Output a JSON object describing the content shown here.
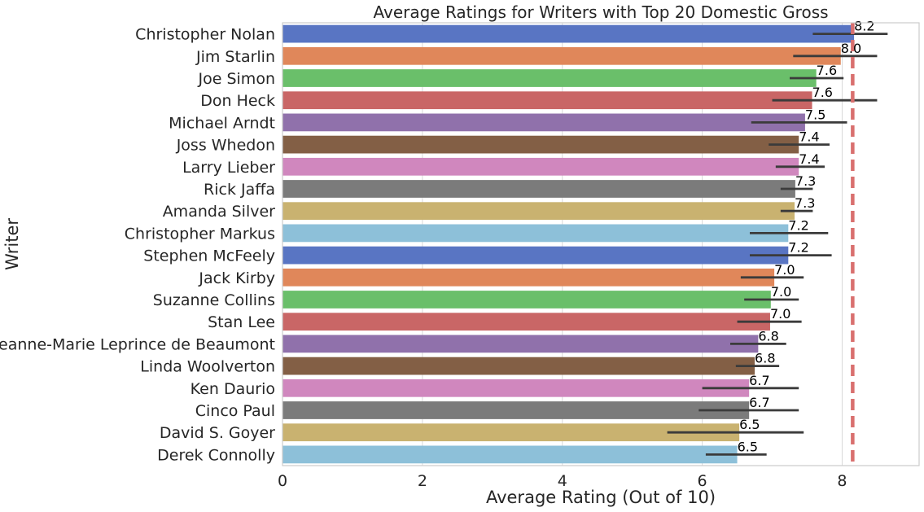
{
  "chart_data": {
    "type": "bar",
    "orientation": "horizontal",
    "title": "Average Ratings for Writers with Top 20 Domestic Gross",
    "xlabel": "Average Rating (Out of 10)",
    "ylabel": "Writer",
    "xlim": [
      0,
      9.1
    ],
    "xticks": [
      "0",
      "2",
      "4",
      "6",
      "8"
    ],
    "grid": true,
    "reference_line": 8.15,
    "categories": [
      "Christopher Nolan",
      "Jim Starlin",
      "Joe Simon",
      "Don Heck",
      "Michael Arndt",
      "Joss Whedon",
      "Larry Lieber",
      "Rick Jaffa",
      "Amanda Silver",
      "Christopher Markus",
      "Stephen McFeely",
      "Jack Kirby",
      "Suzanne Collins",
      "Stan Lee",
      "Jeanne-Marie Leprince de Beaumont",
      "Linda Woolverton",
      "Ken Daurio",
      "Cinco Paul",
      "David S. Goyer",
      "Derek Connolly"
    ],
    "values": [
      8.17,
      7.98,
      7.63,
      7.57,
      7.47,
      7.38,
      7.38,
      7.33,
      7.32,
      7.23,
      7.23,
      7.03,
      6.98,
      6.97,
      6.8,
      6.75,
      6.67,
      6.67,
      6.53,
      6.5
    ],
    "value_labels": [
      "8.2",
      "8.0",
      "7.6",
      "7.6",
      "7.5",
      "7.4",
      "7.4",
      "7.3",
      "7.3",
      "7.2",
      "7.2",
      "7.0",
      "7.0",
      "7.0",
      "6.8",
      "6.8",
      "6.7",
      "6.7",
      "6.5",
      "6.5"
    ],
    "error_low": [
      7.58,
      7.3,
      7.25,
      7.0,
      6.7,
      6.95,
      7.05,
      7.12,
      7.12,
      6.68,
      6.68,
      6.55,
      6.6,
      6.5,
      6.4,
      6.48,
      6.0,
      5.95,
      5.5,
      6.05
    ],
    "error_high": [
      8.65,
      8.5,
      8.02,
      8.5,
      8.07,
      7.82,
      7.75,
      7.58,
      7.58,
      7.8,
      7.85,
      7.45,
      7.38,
      7.42,
      7.2,
      7.1,
      7.38,
      7.38,
      7.45,
      6.92
    ],
    "colors": [
      "#5975c3",
      "#e0875a",
      "#6abf6a",
      "#c96666",
      "#9071ab",
      "#835f45",
      "#d087be",
      "#7b7b7b",
      "#c9b270",
      "#8dc0d9"
    ]
  }
}
